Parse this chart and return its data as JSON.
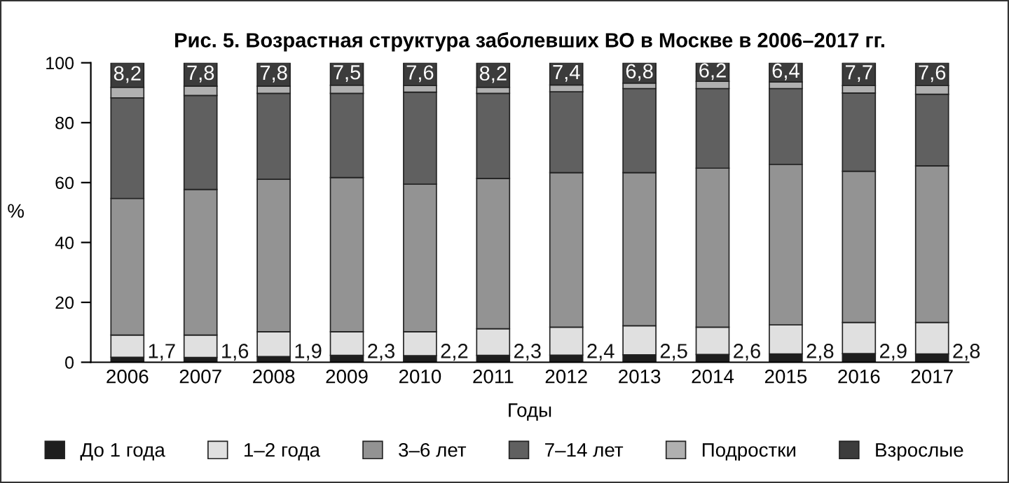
{
  "chart_data": {
    "type": "bar",
    "stacked": true,
    "title": "Рис. 5. Возрастная структура заболевших ВО в Москве в 2006–2017 гг.",
    "xlabel": "Годы",
    "ylabel": "%",
    "categories": [
      "2006",
      "2007",
      "2008",
      "2009",
      "2010",
      "2011",
      "2012",
      "2013",
      "2014",
      "2015",
      "2016",
      "2017"
    ],
    "ylim": [
      0,
      100
    ],
    "yticks": [
      0,
      20,
      40,
      60,
      80,
      100
    ],
    "grid": false,
    "legend": "bottom",
    "series": [
      {
        "name": "До 1 года",
        "color": "#1e1e1e",
        "values": [
          1.7,
          1.6,
          1.9,
          2.3,
          2.2,
          2.3,
          2.4,
          2.5,
          2.6,
          2.8,
          2.9,
          2.8
        ],
        "value_labels": [
          "1,7",
          "1,6",
          "1,9",
          "2,3",
          "2,2",
          "2,3",
          "2,4",
          "2,5",
          "2,6",
          "2,8",
          "2,9",
          "2,8"
        ]
      },
      {
        "name": "1–2 года",
        "color": "#e0e0e0",
        "values": [
          7.4,
          7.5,
          8.3,
          7.9,
          8.0,
          8.9,
          9.3,
          9.7,
          9.1,
          9.7,
          10.4,
          10.5
        ]
      },
      {
        "name": "3–6 лет",
        "color": "#939393",
        "values": [
          45.6,
          48.6,
          50.9,
          51.5,
          49.3,
          50.2,
          51.6,
          51.1,
          53.1,
          53.6,
          50.5,
          52.3
        ]
      },
      {
        "name": "7–14 лет",
        "color": "#606060",
        "values": [
          33.6,
          31.4,
          28.7,
          28.1,
          30.7,
          28.4,
          27.0,
          28.1,
          26.6,
          25.3,
          26.1,
          23.9
        ]
      },
      {
        "name": "Подростки",
        "color": "#b0b0b0",
        "values": [
          3.5,
          3.1,
          2.4,
          2.7,
          2.2,
          2.0,
          2.3,
          1.8,
          2.4,
          2.2,
          2.5,
          2.9
        ]
      },
      {
        "name": "Взрослые",
        "color": "#3c3c3c",
        "values": [
          8.2,
          7.8,
          7.8,
          7.5,
          7.6,
          8.2,
          7.4,
          6.8,
          6.2,
          6.4,
          7.7,
          7.6
        ],
        "value_labels": [
          "8,2",
          "7,8",
          "7,8",
          "7,5",
          "7,6",
          "8,2",
          "7,4",
          "6,8",
          "6,2",
          "6,4",
          "7,7",
          "7,6"
        ]
      }
    ]
  }
}
